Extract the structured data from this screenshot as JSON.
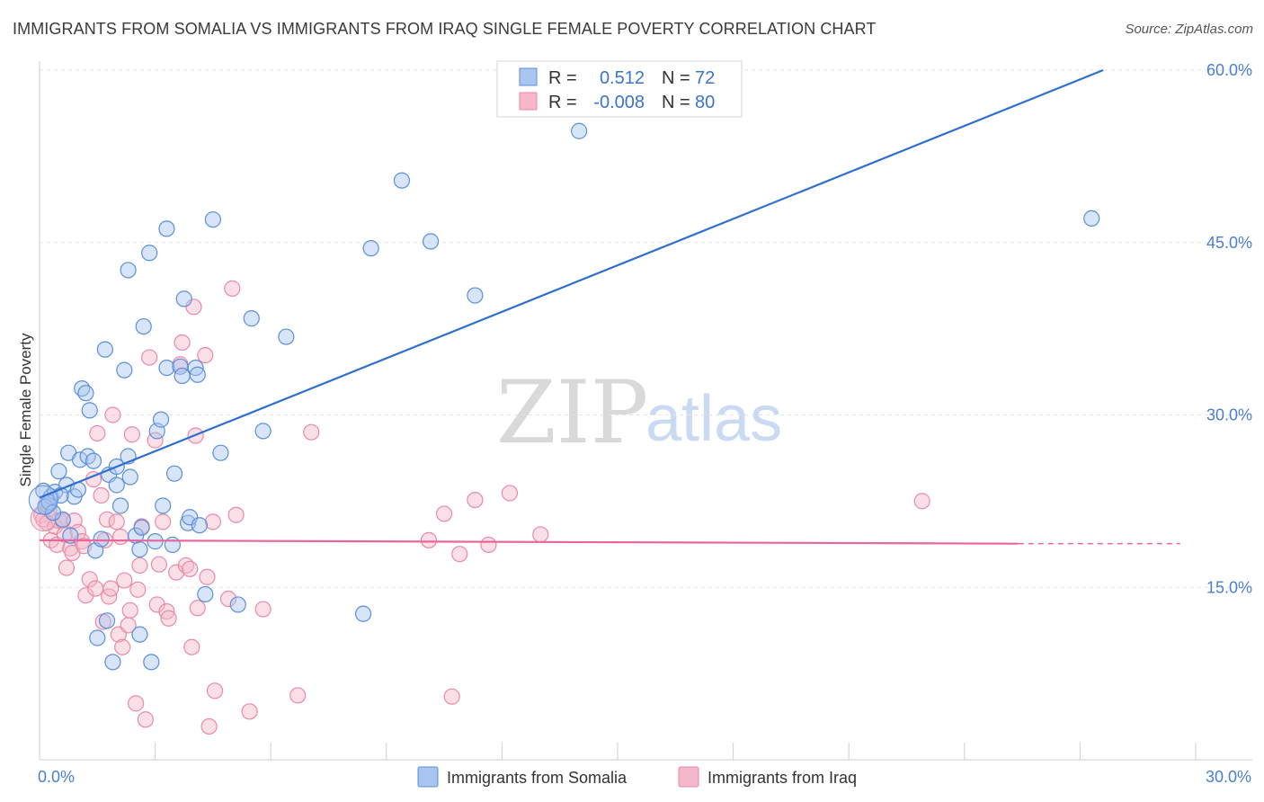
{
  "title": "IMMIGRANTS FROM SOMALIA VS IMMIGRANTS FROM IRAQ SINGLE FEMALE POVERTY CORRELATION CHART",
  "source": "Source: ZipAtlas.com",
  "watermark": {
    "zip": "ZIP",
    "atlas": "atlas"
  },
  "colors": {
    "somalia_fill": "#a9c6f0",
    "somalia_stroke": "#5b8fd9",
    "somalia_line": "#2f6fcf",
    "iraq_fill": "#f5b7c9",
    "iraq_stroke": "#e88aa7",
    "iraq_line": "#e8679a",
    "tick_text": "#4a7fd0",
    "grid": "#e3e3e3"
  },
  "legend": {
    "rows": [
      {
        "r_label": "R =",
        "r_value": "0.512",
        "n_label": "N =",
        "n_value": "72"
      },
      {
        "r_label": "R =",
        "r_value": "-0.008",
        "n_label": "N =",
        "n_value": "80"
      }
    ],
    "bottom": [
      "Immigrants from Somalia",
      "Immigrants from Iraq"
    ]
  },
  "chart_data": {
    "type": "scatter",
    "title": "IMMIGRANTS FROM SOMALIA VS IMMIGRANTS FROM IRAQ SINGLE FEMALE POVERTY CORRELATION CHART",
    "xlabel": "",
    "ylabel": "Single Female Poverty",
    "xlim": [
      0,
      30
    ],
    "ylim": [
      0,
      60
    ],
    "x_tick_labels": [
      "0.0%",
      "30.0%"
    ],
    "y_ticks": [
      15,
      30,
      45,
      60
    ],
    "y_tick_labels": [
      "15.0%",
      "30.0%",
      "45.0%",
      "60.0%"
    ],
    "grid": true,
    "legend_position": "top-center",
    "series": [
      {
        "name": "Immigrants from Somalia",
        "r": 0.512,
        "n": 72,
        "trend": {
          "x": [
            0,
            27.6
          ],
          "y": [
            22.8,
            60.0
          ],
          "dashed_to": null
        },
        "points": [
          [
            0.1,
            23.4
          ],
          [
            0.2,
            22.2
          ],
          [
            0.3,
            22.9
          ],
          [
            0.4,
            23.3
          ],
          [
            0.5,
            25.1
          ],
          [
            0.6,
            20.9
          ],
          [
            0.7,
            23.9
          ],
          [
            0.75,
            26.7
          ],
          [
            0.8,
            19.5
          ],
          [
            0.9,
            22.9
          ],
          [
            1.0,
            23.5
          ],
          [
            1.05,
            26.1
          ],
          [
            1.1,
            32.3
          ],
          [
            1.2,
            31.9
          ],
          [
            1.25,
            26.4
          ],
          [
            1.3,
            30.4
          ],
          [
            1.4,
            26.0
          ],
          [
            1.45,
            18.2
          ],
          [
            1.5,
            10.6
          ],
          [
            1.6,
            19.2
          ],
          [
            1.7,
            35.7
          ],
          [
            1.75,
            12.1
          ],
          [
            1.8,
            24.8
          ],
          [
            1.9,
            8.5
          ],
          [
            2.0,
            25.5
          ],
          [
            2.0,
            23.9
          ],
          [
            2.1,
            22.1
          ],
          [
            2.2,
            33.9
          ],
          [
            2.3,
            26.4
          ],
          [
            2.3,
            42.6
          ],
          [
            2.35,
            24.6
          ],
          [
            2.5,
            19.5
          ],
          [
            2.6,
            18.3
          ],
          [
            2.6,
            10.9
          ],
          [
            2.65,
            20.2
          ],
          [
            2.7,
            37.7
          ],
          [
            2.85,
            44.1
          ],
          [
            2.9,
            8.5
          ],
          [
            3.0,
            19.0
          ],
          [
            3.05,
            28.6
          ],
          [
            3.15,
            29.6
          ],
          [
            3.2,
            22.1
          ],
          [
            3.3,
            46.2
          ],
          [
            3.3,
            34.1
          ],
          [
            3.45,
            18.7
          ],
          [
            3.5,
            24.9
          ],
          [
            3.65,
            34.2
          ],
          [
            3.7,
            33.4
          ],
          [
            3.75,
            40.1
          ],
          [
            3.85,
            20.6
          ],
          [
            3.9,
            21.1
          ],
          [
            4.05,
            34.1
          ],
          [
            4.1,
            33.5
          ],
          [
            4.15,
            20.4
          ],
          [
            4.3,
            14.4
          ],
          [
            4.5,
            47.0
          ],
          [
            4.7,
            26.7
          ],
          [
            5.15,
            13.5
          ],
          [
            5.5,
            38.4
          ],
          [
            5.8,
            28.6
          ],
          [
            6.4,
            36.8
          ],
          [
            8.4,
            12.7
          ],
          [
            8.6,
            44.5
          ],
          [
            9.4,
            50.4
          ],
          [
            10.15,
            45.1
          ],
          [
            11.3,
            40.4
          ],
          [
            14.0,
            54.7
          ],
          [
            27.3,
            47.1
          ],
          [
            0.15,
            22.0
          ],
          [
            0.25,
            22.4
          ],
          [
            0.35,
            21.5
          ],
          [
            0.55,
            23.0
          ]
        ]
      },
      {
        "name": "Immigrants from Iraq",
        "r": -0.008,
        "n": 80,
        "trend": {
          "x": [
            0,
            25.4
          ],
          "y": [
            19.1,
            18.8
          ],
          "dashed_to": [
            29.6,
            18.8
          ]
        },
        "points": [
          [
            0.05,
            21.3
          ],
          [
            0.1,
            20.9
          ],
          [
            0.15,
            22.1
          ],
          [
            0.2,
            20.6
          ],
          [
            0.25,
            21.8
          ],
          [
            0.3,
            19.1
          ],
          [
            0.4,
            20.3
          ],
          [
            0.45,
            18.7
          ],
          [
            0.5,
            20.8
          ],
          [
            0.6,
            20.8
          ],
          [
            0.65,
            19.6
          ],
          [
            0.7,
            16.7
          ],
          [
            0.8,
            18.4
          ],
          [
            0.85,
            18.0
          ],
          [
            0.9,
            20.8
          ],
          [
            1.0,
            19.8
          ],
          [
            1.1,
            19.0
          ],
          [
            1.15,
            18.6
          ],
          [
            1.2,
            14.3
          ],
          [
            1.3,
            15.7
          ],
          [
            1.4,
            24.4
          ],
          [
            1.45,
            14.9
          ],
          [
            1.5,
            28.4
          ],
          [
            1.6,
            23.0
          ],
          [
            1.65,
            12.0
          ],
          [
            1.7,
            19.1
          ],
          [
            1.75,
            20.9
          ],
          [
            1.8,
            14.2
          ],
          [
            1.85,
            14.9
          ],
          [
            1.9,
            30.0
          ],
          [
            2.0,
            20.7
          ],
          [
            2.05,
            10.9
          ],
          [
            2.1,
            19.4
          ],
          [
            2.15,
            9.8
          ],
          [
            2.2,
            15.6
          ],
          [
            2.3,
            11.7
          ],
          [
            2.35,
            13.0
          ],
          [
            2.4,
            28.3
          ],
          [
            2.5,
            4.9
          ],
          [
            2.55,
            14.8
          ],
          [
            2.6,
            16.9
          ],
          [
            2.65,
            20.3
          ],
          [
            2.75,
            3.5
          ],
          [
            2.85,
            35.0
          ],
          [
            3.0,
            27.8
          ],
          [
            3.05,
            13.5
          ],
          [
            3.1,
            17.0
          ],
          [
            3.2,
            20.7
          ],
          [
            3.3,
            12.9
          ],
          [
            3.35,
            12.3
          ],
          [
            3.55,
            16.3
          ],
          [
            3.65,
            34.4
          ],
          [
            3.7,
            36.3
          ],
          [
            3.8,
            16.9
          ],
          [
            3.9,
            16.6
          ],
          [
            3.95,
            9.8
          ],
          [
            4.0,
            39.4
          ],
          [
            4.05,
            28.2
          ],
          [
            4.1,
            13.2
          ],
          [
            4.3,
            35.2
          ],
          [
            4.35,
            15.9
          ],
          [
            4.4,
            2.9
          ],
          [
            4.5,
            20.7
          ],
          [
            4.55,
            6.0
          ],
          [
            4.9,
            14.0
          ],
          [
            5.0,
            41.0
          ],
          [
            5.1,
            21.3
          ],
          [
            5.45,
            4.2
          ],
          [
            5.8,
            13.1
          ],
          [
            6.7,
            5.6
          ],
          [
            7.05,
            28.5
          ],
          [
            10.1,
            19.1
          ],
          [
            10.5,
            21.4
          ],
          [
            10.7,
            5.5
          ],
          [
            10.9,
            17.9
          ],
          [
            11.3,
            22.6
          ],
          [
            11.65,
            18.7
          ],
          [
            12.2,
            23.2
          ],
          [
            13.0,
            19.6
          ],
          [
            22.9,
            22.5
          ]
        ]
      }
    ]
  }
}
